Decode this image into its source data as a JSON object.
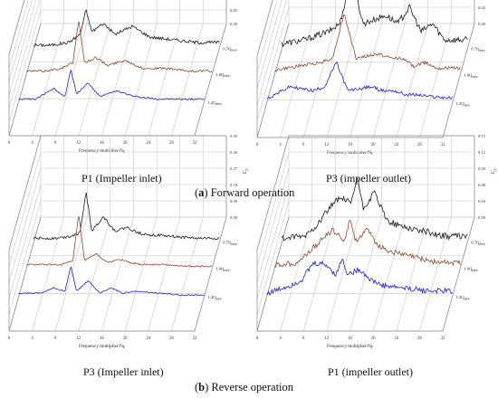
{
  "captions": {
    "a_letter": "a",
    "a_text": " Forward operation",
    "b_letter": "b",
    "b_text": " Reverse operation"
  },
  "colors": {
    "series_07": "#1a1a1a",
    "series_10": "#8b4a2b",
    "series_12": "#1f1fd0",
    "grid": "#c8c8c8",
    "axis": "#888888"
  },
  "chart_data": [
    {
      "type": "line",
      "panel_label": "P1 (Impeller inlet)",
      "xlabel": "Frequency multiplier/N",
      "xlabel_sub": "F",
      "ylabel": "C",
      "ylabel_sub": "p",
      "x_ticks": [
        "0",
        "4",
        "8",
        "12",
        "16",
        "20",
        "24",
        "28",
        "32"
      ],
      "z_ticks": [
        "0.00",
        "0.05",
        "0.10",
        "0.15",
        "0.20",
        "0.25",
        "0.30"
      ],
      "z_max": 0.3,
      "series": [
        {
          "name": "0.7Q",
          "name_sub": "BEP",
          "x": [
            0,
            3,
            6,
            8,
            9,
            10,
            12,
            14,
            17,
            20,
            24,
            28,
            32
          ],
          "y": [
            0.01,
            0.01,
            0.02,
            0.05,
            0.14,
            0.06,
            0.09,
            0.05,
            0.08,
            0.04,
            0.03,
            0.02,
            0.02
          ],
          "noise": 0.012
        },
        {
          "name": "1.0Q",
          "name_sub": "BEP",
          "x": [
            0,
            3,
            6,
            8,
            9,
            10,
            12,
            14,
            17,
            20,
            24,
            28,
            32
          ],
          "y": [
            0.01,
            0.01,
            0.02,
            0.04,
            0.2,
            0.04,
            0.06,
            0.03,
            0.05,
            0.02,
            0.02,
            0.01,
            0.01
          ],
          "noise": 0.008
        },
        {
          "name": "1.2Q",
          "name_sub": "BEP",
          "x": [
            0,
            3,
            6,
            8,
            9,
            10,
            12,
            14,
            17,
            20,
            24,
            28,
            32
          ],
          "y": [
            0.01,
            0.01,
            0.05,
            0.02,
            0.12,
            0.03,
            0.07,
            0.02,
            0.04,
            0.02,
            0.01,
            0.01,
            0.01
          ],
          "noise": 0.006
        }
      ]
    },
    {
      "type": "line",
      "panel_label": "P3 (impeller outlet)",
      "xlabel": "Frequency multiplier/N",
      "xlabel_sub": "F",
      "ylabel": "C",
      "ylabel_sub": "p",
      "x_ticks": [
        "0",
        "4",
        "8",
        "12",
        "16",
        "20",
        "24",
        "28",
        "32"
      ],
      "z_ticks": [
        "0.00",
        "0.02",
        "0.04",
        "0.06",
        "0.08",
        "0.10"
      ],
      "z_max": 0.1,
      "series": [
        {
          "name": "0.7Q",
          "name_sub": "BEP",
          "x": [
            0,
            4,
            8,
            10,
            12,
            14,
            18,
            20,
            22,
            24,
            26,
            28,
            32
          ],
          "y": [
            0.005,
            0.01,
            0.02,
            0.03,
            0.09,
            0.03,
            0.04,
            0.03,
            0.05,
            0.02,
            0.03,
            0.01,
            0.01
          ],
          "noise": 0.008
        },
        {
          "name": "1.0Q",
          "name_sub": "BEP",
          "x": [
            0,
            4,
            8,
            10,
            12,
            14,
            18,
            20,
            22,
            24,
            26,
            28,
            32
          ],
          "y": [
            0.005,
            0.01,
            0.015,
            0.02,
            0.075,
            0.02,
            0.025,
            0.02,
            0.02,
            0.01,
            0.015,
            0.008,
            0.008
          ],
          "noise": 0.004
        },
        {
          "name": "1.2Q",
          "name_sub": "BEP",
          "x": [
            0,
            4,
            8,
            10,
            12,
            14,
            18,
            20,
            22,
            24,
            26,
            28,
            32
          ],
          "y": [
            0.005,
            0.02,
            0.015,
            0.02,
            0.05,
            0.015,
            0.02,
            0.015,
            0.015,
            0.01,
            0.01,
            0.008,
            0.006
          ],
          "noise": 0.004
        }
      ]
    },
    {
      "type": "line",
      "panel_label": "P3 (Impeller inlet)",
      "xlabel": "Frequency multiplier/N",
      "xlabel_sub": "F",
      "ylabel": "C",
      "ylabel_sub": "p",
      "x_ticks": [
        "0",
        "4",
        "8",
        "12",
        "16",
        "20",
        "24",
        "28",
        "32"
      ],
      "z_ticks": [
        "0.00",
        "0.09",
        "0.18",
        "0.27",
        "0.36",
        "0.45"
      ],
      "z_max": 0.45,
      "series": [
        {
          "name": "0.7Q",
          "name_sub": "BEP",
          "x": [
            0,
            4,
            6,
            8,
            9,
            10,
            12,
            14,
            16,
            18,
            20,
            24,
            28,
            32
          ],
          "y": [
            0.02,
            0.02,
            0.03,
            0.05,
            0.28,
            0.06,
            0.14,
            0.06,
            0.08,
            0.05,
            0.04,
            0.03,
            0.02,
            0.02
          ],
          "noise": 0.015
        },
        {
          "name": "1.0Q",
          "name_sub": "BEP",
          "x": [
            0,
            4,
            6,
            8,
            9,
            10,
            12,
            14,
            16,
            18,
            20,
            24,
            28,
            32
          ],
          "y": [
            0.02,
            0.02,
            0.02,
            0.04,
            0.3,
            0.04,
            0.08,
            0.03,
            0.05,
            0.03,
            0.02,
            0.02,
            0.01,
            0.01
          ],
          "noise": 0.008
        },
        {
          "name": "1.2Q",
          "name_sub": "BEP",
          "x": [
            0,
            4,
            6,
            8,
            9,
            10,
            12,
            14,
            16,
            18,
            20,
            24,
            28,
            32
          ],
          "y": [
            0.02,
            0.02,
            0.05,
            0.03,
            0.17,
            0.03,
            0.09,
            0.02,
            0.05,
            0.02,
            0.03,
            0.02,
            0.01,
            0.01
          ],
          "noise": 0.006
        }
      ]
    },
    {
      "type": "line",
      "panel_label": "P1 (impeller outlet)",
      "xlabel": "Frequency multiplier/N",
      "xlabel_sub": "F",
      "ylabel": "C",
      "ylabel_sub": "p",
      "x_ticks": [
        "0",
        "4",
        "8",
        "12",
        "16",
        "20",
        "24",
        "28",
        "32"
      ],
      "z_ticks": [
        "0.00",
        "0.03",
        "0.06",
        "0.09",
        "0.12",
        "0.15"
      ],
      "z_max": 0.15,
      "series": [
        {
          "name": "0.7Q",
          "name_sub": "BEP",
          "x": [
            0,
            4,
            6,
            8,
            10,
            12,
            13,
            14,
            16,
            18,
            20,
            24,
            28,
            32
          ],
          "y": [
            0.005,
            0.01,
            0.03,
            0.06,
            0.08,
            0.07,
            0.12,
            0.06,
            0.09,
            0.04,
            0.03,
            0.02,
            0.01,
            0.01
          ],
          "noise": 0.012
        },
        {
          "name": "1.0Q",
          "name_sub": "BEP",
          "x": [
            0,
            4,
            6,
            8,
            10,
            12,
            13,
            14,
            16,
            18,
            20,
            24,
            28,
            32
          ],
          "y": [
            0.005,
            0.01,
            0.03,
            0.05,
            0.07,
            0.05,
            0.09,
            0.05,
            0.07,
            0.04,
            0.03,
            0.02,
            0.01,
            0.01
          ],
          "noise": 0.01
        },
        {
          "name": "1.2Q",
          "name_sub": "BEP",
          "x": [
            0,
            4,
            6,
            8,
            10,
            12,
            13,
            14,
            16,
            18,
            20,
            24,
            28,
            32
          ],
          "y": [
            0.005,
            0.02,
            0.03,
            0.06,
            0.06,
            0.04,
            0.07,
            0.04,
            0.05,
            0.03,
            0.02,
            0.015,
            0.01,
            0.01
          ],
          "noise": 0.01
        }
      ]
    }
  ]
}
